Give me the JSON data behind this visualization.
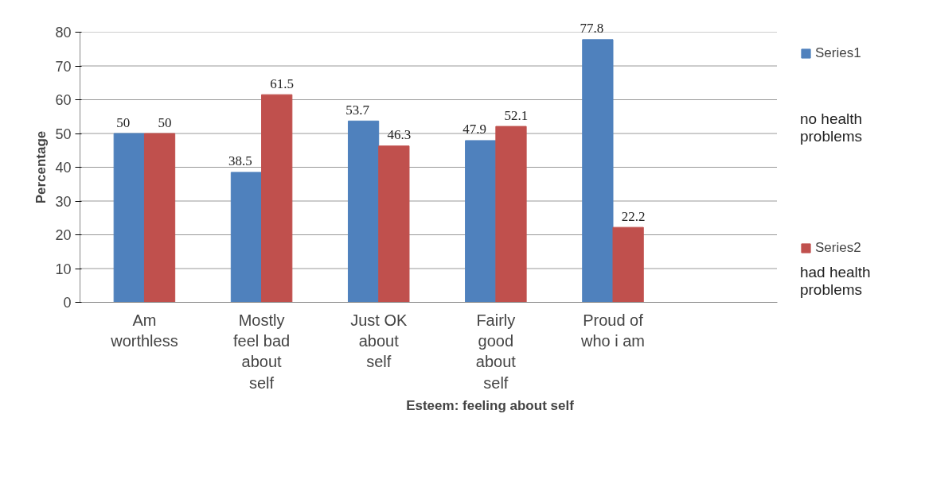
{
  "chart_data": {
    "type": "bar",
    "xlabel": "Esteem: feeling about self",
    "ylabel": "Percentage",
    "categories": [
      "Am worthless",
      "Mostly feel bad about self",
      "Just OK about self",
      "Fairly good about self",
      "Proud of who i am"
    ],
    "series": [
      {
        "name": "Series1",
        "color": "#4f81bd",
        "values": [
          50,
          38.5,
          53.7,
          47.9,
          77.8
        ]
      },
      {
        "name": "Series2",
        "color": "#c0504d",
        "values": [
          50,
          61.5,
          46.3,
          52.1,
          22.2
        ]
      }
    ],
    "ylim": [
      0,
      80
    ],
    "yticks": [
      0,
      10,
      20,
      30,
      40,
      50,
      60,
      70,
      80
    ],
    "grid": "y",
    "legend": "right",
    "data_labels": true,
    "annotations": [
      "no health problems",
      "had health problems"
    ]
  }
}
